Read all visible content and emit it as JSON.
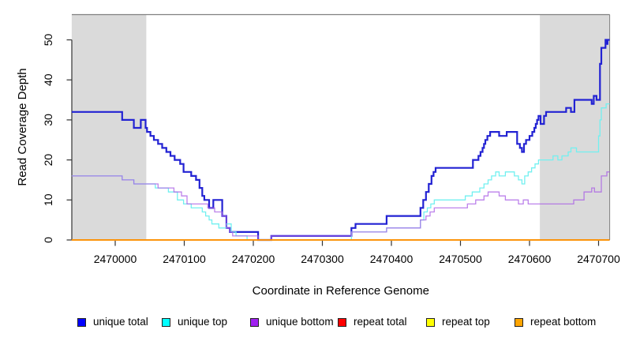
{
  "chart_data": {
    "type": "line",
    "subtype": "step-after",
    "title": "",
    "xlabel": "Coordinate in Reference Genome",
    "ylabel": "Read Coverage Depth",
    "xlim": [
      2469937,
      2470716
    ],
    "ylim": [
      0,
      56
    ],
    "grid": false,
    "x_ticks": [
      2470000,
      2470100,
      2470200,
      2470300,
      2470400,
      2470500,
      2470600,
      2470700
    ],
    "y_ticks": [
      0,
      10,
      20,
      30,
      40,
      50
    ],
    "shaded_regions": [
      {
        "x0": 2469937,
        "x1": 2470045,
        "color": "#dadada"
      },
      {
        "x0": 2470615,
        "x1": 2470716,
        "color": "#dadada"
      }
    ],
    "frame": {
      "top_border_color": "#808080",
      "axis_color": "#333333"
    },
    "legend": {
      "position": "bottom",
      "entries": [
        {
          "label": "unique total",
          "color": "#0000ff"
        },
        {
          "label": "unique top",
          "color": "#00ffff"
        },
        {
          "label": "unique bottom",
          "color": "#a020f0"
        },
        {
          "label": "repeat total",
          "color": "#ff0000"
        },
        {
          "label": "repeat top",
          "color": "#ffff00"
        },
        {
          "label": "repeat bottom",
          "color": "#ffa500"
        }
      ]
    },
    "series": [
      {
        "name": "unique total",
        "color": "#2222d3",
        "width": 2.2,
        "opacity": 1,
        "points": [
          [
            2469937,
            32
          ],
          [
            2470010,
            30
          ],
          [
            2470027,
            28
          ],
          [
            2470037,
            30
          ],
          [
            2470044,
            28
          ],
          [
            2470046,
            27
          ],
          [
            2470051,
            26
          ],
          [
            2470056,
            25
          ],
          [
            2470062,
            24
          ],
          [
            2470068,
            23
          ],
          [
            2470074,
            22
          ],
          [
            2470080,
            21
          ],
          [
            2470086,
            20
          ],
          [
            2470094,
            19
          ],
          [
            2470099,
            17
          ],
          [
            2470110,
            16
          ],
          [
            2470117,
            15
          ],
          [
            2470122,
            13
          ],
          [
            2470126,
            11
          ],
          [
            2470129,
            10
          ],
          [
            2470136,
            8
          ],
          [
            2470142,
            10
          ],
          [
            2470155,
            6
          ],
          [
            2470161,
            3
          ],
          [
            2470166,
            2
          ],
          [
            2470207,
            0
          ],
          [
            2470226,
            1
          ],
          [
            2470342,
            3
          ],
          [
            2470348,
            4
          ],
          [
            2470393,
            6
          ],
          [
            2470442,
            8
          ],
          [
            2470446,
            10
          ],
          [
            2470450,
            12
          ],
          [
            2470454,
            14
          ],
          [
            2470458,
            16
          ],
          [
            2470461,
            17
          ],
          [
            2470464,
            18
          ],
          [
            2470518,
            20
          ],
          [
            2470526,
            21
          ],
          [
            2470529,
            22
          ],
          [
            2470532,
            23
          ],
          [
            2470534,
            24
          ],
          [
            2470536,
            25
          ],
          [
            2470539,
            26
          ],
          [
            2470543,
            27
          ],
          [
            2470556,
            26
          ],
          [
            2470567,
            27
          ],
          [
            2470582,
            24
          ],
          [
            2470586,
            23
          ],
          [
            2470589,
            22
          ],
          [
            2470592,
            24
          ],
          [
            2470595,
            25
          ],
          [
            2470600,
            26
          ],
          [
            2470604,
            27
          ],
          [
            2470607,
            28
          ],
          [
            2470609,
            29
          ],
          [
            2470611,
            30
          ],
          [
            2470613,
            31
          ],
          [
            2470616,
            29
          ],
          [
            2470621,
            31
          ],
          [
            2470624,
            32
          ],
          [
            2470653,
            33
          ],
          [
            2470660,
            32
          ],
          [
            2470665,
            35
          ],
          [
            2470690,
            34
          ],
          [
            2470693,
            36
          ],
          [
            2470697,
            35
          ],
          [
            2470702,
            44
          ],
          [
            2470704,
            48
          ],
          [
            2470710,
            50
          ],
          [
            2470711,
            49
          ],
          [
            2470713,
            50
          ]
        ]
      },
      {
        "name": "unique top",
        "color": "#72f0f0",
        "width": 1.3,
        "opacity": 1,
        "points": [
          [
            2469937,
            16
          ],
          [
            2470010,
            15
          ],
          [
            2470027,
            14
          ],
          [
            2470058,
            13
          ],
          [
            2470077,
            12
          ],
          [
            2470090,
            10
          ],
          [
            2470099,
            9
          ],
          [
            2470110,
            8
          ],
          [
            2470126,
            7
          ],
          [
            2470131,
            6
          ],
          [
            2470136,
            5
          ],
          [
            2470140,
            4
          ],
          [
            2470150,
            3
          ],
          [
            2470161,
            4
          ],
          [
            2470168,
            2
          ],
          [
            2470175,
            1
          ],
          [
            2470191,
            0
          ],
          [
            2470342,
            2
          ],
          [
            2470393,
            3
          ],
          [
            2470442,
            5
          ],
          [
            2470447,
            7
          ],
          [
            2470452,
            8
          ],
          [
            2470457,
            9
          ],
          [
            2470462,
            10
          ],
          [
            2470507,
            11
          ],
          [
            2470517,
            12
          ],
          [
            2470528,
            13
          ],
          [
            2470534,
            14
          ],
          [
            2470540,
            15
          ],
          [
            2470545,
            16
          ],
          [
            2470551,
            17
          ],
          [
            2470556,
            16
          ],
          [
            2470565,
            17
          ],
          [
            2470578,
            16
          ],
          [
            2470584,
            15
          ],
          [
            2470589,
            14
          ],
          [
            2470593,
            16
          ],
          [
            2470598,
            17
          ],
          [
            2470603,
            18
          ],
          [
            2470608,
            19
          ],
          [
            2470613,
            20
          ],
          [
            2470634,
            21
          ],
          [
            2470641,
            20
          ],
          [
            2470647,
            21
          ],
          [
            2470656,
            22
          ],
          [
            2470660,
            23
          ],
          [
            2470668,
            22
          ],
          [
            2470700,
            26
          ],
          [
            2470702,
            30
          ],
          [
            2470704,
            33
          ],
          [
            2470711,
            34
          ]
        ]
      },
      {
        "name": "unique bottom",
        "color": "#a95fe6",
        "width": 1.3,
        "opacity": 0.78,
        "points": [
          [
            2469937,
            16
          ],
          [
            2470010,
            15
          ],
          [
            2470027,
            14
          ],
          [
            2470062,
            13
          ],
          [
            2470085,
            12
          ],
          [
            2470096,
            11
          ],
          [
            2470104,
            9
          ],
          [
            2470134,
            8
          ],
          [
            2470144,
            7
          ],
          [
            2470155,
            6
          ],
          [
            2470161,
            3
          ],
          [
            2470166,
            2
          ],
          [
            2470170,
            1
          ],
          [
            2470207,
            0
          ],
          [
            2470226,
            1
          ],
          [
            2470342,
            2
          ],
          [
            2470393,
            3
          ],
          [
            2470442,
            5
          ],
          [
            2470450,
            6
          ],
          [
            2470456,
            7
          ],
          [
            2470462,
            8
          ],
          [
            2470510,
            9
          ],
          [
            2470522,
            10
          ],
          [
            2470534,
            11
          ],
          [
            2470540,
            12
          ],
          [
            2470556,
            11
          ],
          [
            2470565,
            10
          ],
          [
            2470584,
            9
          ],
          [
            2470591,
            10
          ],
          [
            2470598,
            9
          ],
          [
            2470664,
            10
          ],
          [
            2470679,
            12
          ],
          [
            2470690,
            13
          ],
          [
            2470694,
            12
          ],
          [
            2470704,
            16
          ],
          [
            2470712,
            17
          ]
        ]
      },
      {
        "name": "repeat total",
        "color": "#ff0000",
        "width": 1.3,
        "opacity": 1,
        "points": [
          [
            2469937,
            0
          ],
          [
            2470716,
            0
          ]
        ]
      },
      {
        "name": "repeat top",
        "color": "#ffff00",
        "width": 1.3,
        "opacity": 1,
        "points": [
          [
            2469937,
            0
          ],
          [
            2470716,
            0
          ]
        ]
      },
      {
        "name": "repeat bottom",
        "color": "#ff9100",
        "width": 1.7,
        "opacity": 1,
        "points": [
          [
            2469937,
            0
          ],
          [
            2470716,
            0
          ]
        ]
      }
    ]
  }
}
